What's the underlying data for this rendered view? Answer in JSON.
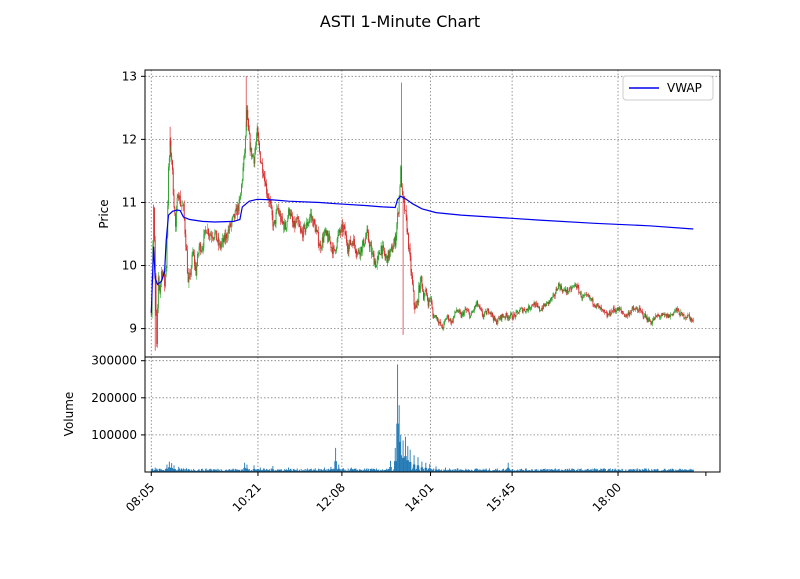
{
  "title": "ASTI 1-Minute Chart",
  "colors": {
    "up": "#2ca02c",
    "down": "#d62728",
    "vwap": "#0000ee",
    "volume": "#1f77b4",
    "grid": "#7f7f7f"
  },
  "chart_data": [
    {
      "type": "candlestick",
      "ylabel": "Price",
      "ylim": [
        8.55,
        13.1
      ],
      "yticks": [
        9,
        10,
        11,
        12,
        13
      ],
      "grid": true,
      "legend": {
        "position": "top-right",
        "entries": [
          "VWAP"
        ]
      },
      "time_range_minutes": [
        485,
        1210
      ],
      "x_ticks": [
        {
          "label": "08:05",
          "minute": 485
        },
        {
          "label": "10:21",
          "minute": 621
        },
        {
          "label": "12:08",
          "minute": 728
        },
        {
          "label": "14:01",
          "minute": 841
        },
        {
          "label": "15:45",
          "minute": 945
        },
        {
          "label": "18:00",
          "minute": 1080
        },
        {
          "label": "",
          "minute": 1192
        }
      ],
      "price_path": [
        [
          485,
          9.3
        ],
        [
          488,
          10.9
        ],
        [
          490,
          9.8
        ],
        [
          492,
          8.7
        ],
        [
          494,
          9.8
        ],
        [
          496,
          9.6
        ],
        [
          498,
          9.9
        ],
        [
          500,
          9.9
        ],
        [
          502,
          9.7
        ],
        [
          504,
          10.0
        ],
        [
          507,
          11.5
        ],
        [
          509,
          11.9
        ],
        [
          511,
          11.7
        ],
        [
          513,
          11.2
        ],
        [
          516,
          10.6
        ],
        [
          519,
          11.2
        ],
        [
          522,
          11.0
        ],
        [
          526,
          10.9
        ],
        [
          530,
          10.2
        ],
        [
          532,
          9.7
        ],
        [
          534,
          9.8
        ],
        [
          538,
          10.2
        ],
        [
          542,
          9.9
        ],
        [
          546,
          10.3
        ],
        [
          550,
          10.3
        ],
        [
          555,
          10.6
        ],
        [
          560,
          10.5
        ],
        [
          566,
          10.5
        ],
        [
          572,
          10.3
        ],
        [
          578,
          10.4
        ],
        [
          585,
          10.6
        ],
        [
          592,
          10.8
        ],
        [
          598,
          11.0
        ],
        [
          604,
          11.8
        ],
        [
          607,
          12.4
        ],
        [
          609,
          12.1
        ],
        [
          612,
          11.8
        ],
        [
          616,
          11.7
        ],
        [
          620,
          12.1
        ],
        [
          624,
          11.7
        ],
        [
          628,
          11.5
        ],
        [
          632,
          11.2
        ],
        [
          636,
          11.0
        ],
        [
          641,
          10.6
        ],
        [
          646,
          10.9
        ],
        [
          651,
          10.7
        ],
        [
          656,
          10.6
        ],
        [
          661,
          10.9
        ],
        [
          666,
          10.6
        ],
        [
          671,
          10.7
        ],
        [
          676,
          10.5
        ],
        [
          682,
          10.6
        ],
        [
          688,
          10.8
        ],
        [
          694,
          10.6
        ],
        [
          700,
          10.3
        ],
        [
          706,
          10.5
        ],
        [
          712,
          10.4
        ],
        [
          718,
          10.2
        ],
        [
          724,
          10.5
        ],
        [
          730,
          10.6
        ],
        [
          736,
          10.3
        ],
        [
          742,
          10.4
        ],
        [
          748,
          10.2
        ],
        [
          754,
          10.3
        ],
        [
          760,
          10.5
        ],
        [
          766,
          10.2
        ],
        [
          772,
          10.0
        ],
        [
          778,
          10.3
        ],
        [
          784,
          10.1
        ],
        [
          790,
          10.2
        ],
        [
          796,
          10.4
        ],
        [
          800,
          10.9
        ],
        [
          803,
          11.5
        ],
        [
          805,
          11.1
        ],
        [
          808,
          10.9
        ],
        [
          811,
          10.6
        ],
        [
          814,
          10.2
        ],
        [
          817,
          9.8
        ],
        [
          820,
          9.4
        ],
        [
          823,
          9.3
        ],
        [
          826,
          9.6
        ],
        [
          829,
          9.8
        ],
        [
          832,
          9.5
        ],
        [
          835,
          9.6
        ],
        [
          838,
          9.4
        ],
        [
          841,
          9.5
        ],
        [
          844,
          9.2
        ],
        [
          848,
          9.2
        ],
        [
          852,
          9.1
        ],
        [
          856,
          9.0
        ],
        [
          862,
          9.2
        ],
        [
          868,
          9.1
        ],
        [
          874,
          9.3
        ],
        [
          880,
          9.2
        ],
        [
          886,
          9.3
        ],
        [
          892,
          9.2
        ],
        [
          900,
          9.4
        ],
        [
          908,
          9.2
        ],
        [
          916,
          9.3
        ],
        [
          924,
          9.1
        ],
        [
          932,
          9.2
        ],
        [
          940,
          9.2
        ],
        [
          948,
          9.2
        ],
        [
          956,
          9.3
        ],
        [
          964,
          9.3
        ],
        [
          972,
          9.4
        ],
        [
          980,
          9.3
        ],
        [
          990,
          9.4
        ],
        [
          998,
          9.5
        ],
        [
          1004,
          9.7
        ],
        [
          1010,
          9.6
        ],
        [
          1018,
          9.6
        ],
        [
          1026,
          9.7
        ],
        [
          1034,
          9.5
        ],
        [
          1042,
          9.5
        ],
        [
          1050,
          9.4
        ],
        [
          1058,
          9.3
        ],
        [
          1066,
          9.2
        ],
        [
          1074,
          9.3
        ],
        [
          1082,
          9.3
        ],
        [
          1090,
          9.2
        ],
        [
          1098,
          9.3
        ],
        [
          1106,
          9.3
        ],
        [
          1114,
          9.2
        ],
        [
          1122,
          9.1
        ],
        [
          1130,
          9.2
        ],
        [
          1138,
          9.2
        ],
        [
          1146,
          9.2
        ],
        [
          1154,
          9.3
        ],
        [
          1162,
          9.2
        ],
        [
          1170,
          9.2
        ],
        [
          1176,
          9.1
        ]
      ],
      "price_spikes": [
        [
          490,
          8.65
        ],
        [
          488,
          10.95
        ],
        [
          509,
          12.2
        ],
        [
          606,
          13.0
        ],
        [
          804,
          12.9
        ],
        [
          806,
          8.9
        ]
      ],
      "vwap": [
        [
          485,
          9.25
        ],
        [
          488,
          10.3
        ],
        [
          490,
          9.8
        ],
        [
          493,
          9.7
        ],
        [
          498,
          9.75
        ],
        [
          502,
          9.9
        ],
        [
          504,
          10.4
        ],
        [
          507,
          10.8
        ],
        [
          512,
          10.86
        ],
        [
          518,
          10.88
        ],
        [
          522,
          10.87
        ],
        [
          526,
          10.77
        ],
        [
          534,
          10.73
        ],
        [
          550,
          10.7
        ],
        [
          566,
          10.69
        ],
        [
          590,
          10.7
        ],
        [
          598,
          10.73
        ],
        [
          601,
          10.93
        ],
        [
          610,
          11.02
        ],
        [
          620,
          11.05
        ],
        [
          640,
          11.04
        ],
        [
          660,
          11.02
        ],
        [
          700,
          11.0
        ],
        [
          720,
          10.98
        ],
        [
          760,
          10.95
        ],
        [
          780,
          10.93
        ],
        [
          796,
          10.92
        ],
        [
          799,
          11.05
        ],
        [
          803,
          11.1
        ],
        [
          810,
          11.05
        ],
        [
          818,
          10.98
        ],
        [
          830,
          10.9
        ],
        [
          848,
          10.84
        ],
        [
          880,
          10.8
        ],
        [
          930,
          10.76
        ],
        [
          980,
          10.72
        ],
        [
          1050,
          10.67
        ],
        [
          1120,
          10.63
        ],
        [
          1176,
          10.58
        ]
      ]
    },
    {
      "type": "bar",
      "ylabel": "Volume",
      "ylim": [
        0,
        310000
      ],
      "yticks": [
        100000,
        200000,
        300000
      ],
      "grid": true,
      "baseline": 8000,
      "spikes": [
        [
          486,
          10000
        ],
        [
          490,
          12000
        ],
        [
          505,
          20000
        ],
        [
          508,
          28000
        ],
        [
          511,
          24000
        ],
        [
          514,
          18000
        ],
        [
          520,
          14000
        ],
        [
          530,
          10000
        ],
        [
          560,
          9000
        ],
        [
          590,
          8000
        ],
        [
          604,
          25000
        ],
        [
          607,
          20000
        ],
        [
          616,
          18000
        ],
        [
          624,
          12000
        ],
        [
          640,
          16000
        ],
        [
          660,
          12000
        ],
        [
          694,
          10000
        ],
        [
          706,
          12000
        ],
        [
          714,
          14000
        ],
        [
          720,
          65000
        ],
        [
          724,
          20000
        ],
        [
          730,
          10000
        ],
        [
          740,
          12000
        ],
        [
          760,
          10000
        ],
        [
          790,
          30000
        ],
        [
          796,
          65000
        ],
        [
          799,
          290000
        ],
        [
          801,
          180000
        ],
        [
          803,
          100000
        ],
        [
          806,
          85000
        ],
        [
          809,
          95000
        ],
        [
          812,
          70000
        ],
        [
          815,
          60000
        ],
        [
          820,
          45000
        ],
        [
          825,
          40000
        ],
        [
          830,
          28000
        ],
        [
          835,
          25000
        ],
        [
          840,
          22000
        ],
        [
          848,
          15000
        ],
        [
          860,
          12000
        ],
        [
          875,
          10000
        ],
        [
          900,
          10000
        ],
        [
          940,
          25000
        ],
        [
          1000,
          10000
        ],
        [
          1050,
          10000
        ],
        [
          1100,
          8000
        ],
        [
          1150,
          8000
        ]
      ]
    }
  ]
}
